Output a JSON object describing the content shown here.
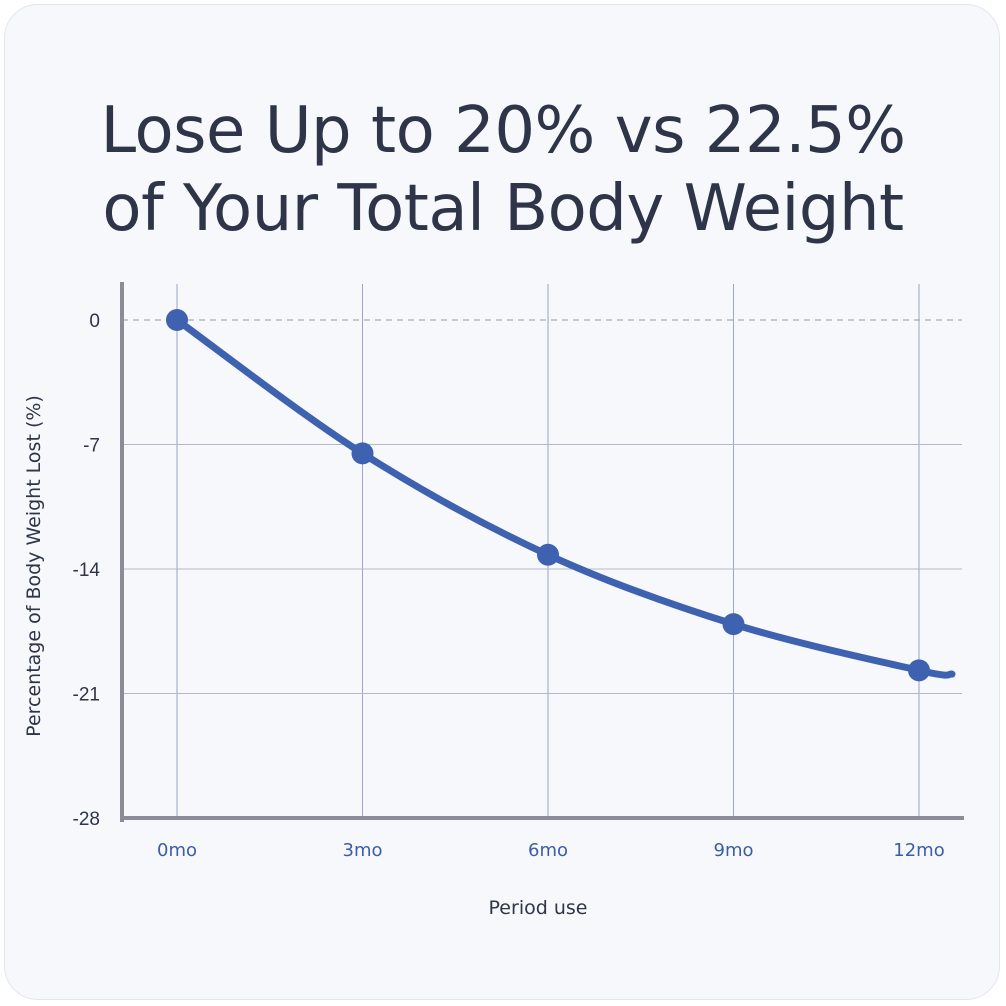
{
  "title": {
    "line1": "Lose Up to 20% vs 22.5%",
    "line2": "of Your Total Body Weight"
  },
  "colors": {
    "line": "#3f62b0",
    "axis": "#8a8d96",
    "gridline": "#9aa5c9",
    "text": "#2f3548"
  },
  "chart_data": {
    "type": "line",
    "categories": [
      "0mo",
      "3mo",
      "6mo",
      "9mo",
      "12mo"
    ],
    "series": [
      {
        "values": [
          0,
          -7.5,
          -13.2,
          -17.1,
          -19.7
        ]
      }
    ],
    "xlabel": "Period use",
    "ylabel": "Percentage of Body Weight Lost (%)",
    "yticks": [
      "0",
      "-7",
      "-14",
      "-21",
      "-28"
    ],
    "ytick_values": [
      0,
      -7,
      -14,
      -21,
      -28
    ],
    "ylim": [
      -28,
      2
    ],
    "grid": true,
    "zero_line_dashed": true,
    "curve_extends_past_last_point": true
  }
}
